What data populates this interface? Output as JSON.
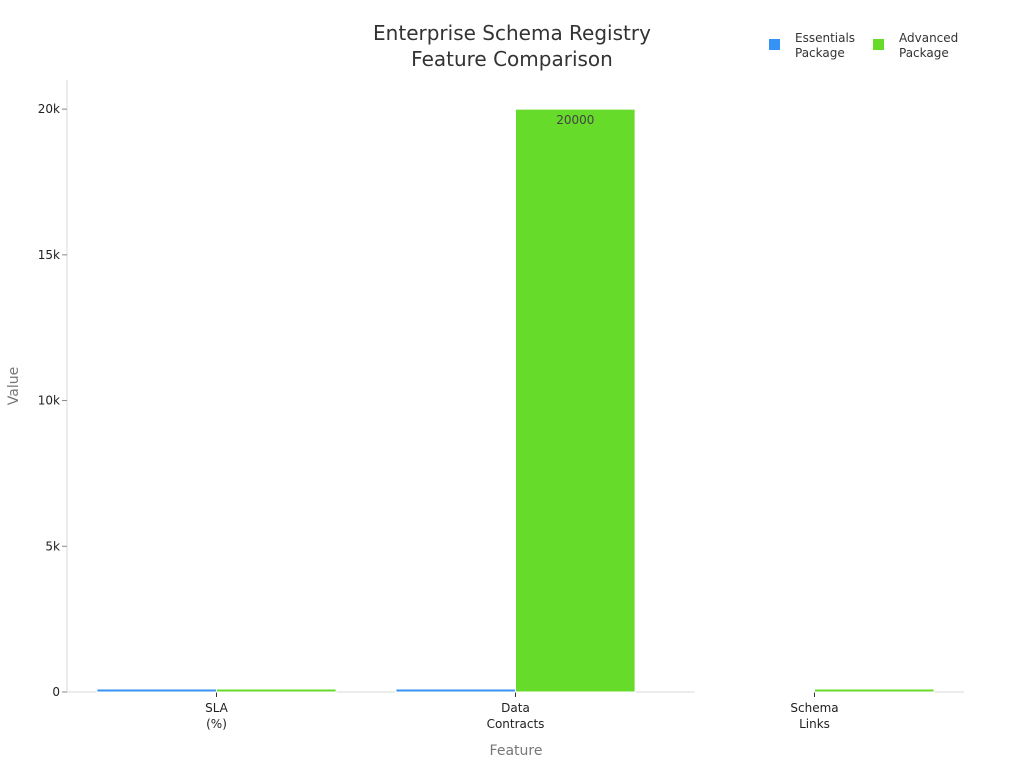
{
  "chart_data": {
    "type": "bar",
    "title": "Enterprise Schema Registry Feature Comparison",
    "title_lines": [
      "Enterprise Schema Registry",
      "Feature Comparison"
    ],
    "xlabel": "Feature",
    "ylabel": "Value",
    "categories": [
      "SLA (%)",
      "Data Contracts",
      "Schema Links"
    ],
    "category_lines": [
      [
        "SLA",
        "(%)"
      ],
      [
        "Data",
        "Contracts"
      ],
      [
        "Schema",
        "Links"
      ]
    ],
    "series": [
      {
        "name": "Essentials Package",
        "name_lines": [
          "Essentials",
          "Package"
        ],
        "color": "#3593f5",
        "values": [
          99.9,
          100,
          0
        ]
      },
      {
        "name": "Advanced Package",
        "name_lines": [
          "Advanced",
          "Package"
        ],
        "color": "#66db29",
        "values": [
          99.99,
          20000,
          100
        ]
      }
    ],
    "ylim": [
      0,
      21000
    ],
    "yticks": [
      0,
      5000,
      10000,
      15000,
      20000
    ],
    "ytick_labels": [
      "0",
      "5k",
      "10k",
      "15k",
      "20k"
    ],
    "data_labels": [
      {
        "series": 1,
        "category": 1,
        "text": "20000"
      }
    ],
    "grid": false,
    "legend_position": "top-right"
  }
}
